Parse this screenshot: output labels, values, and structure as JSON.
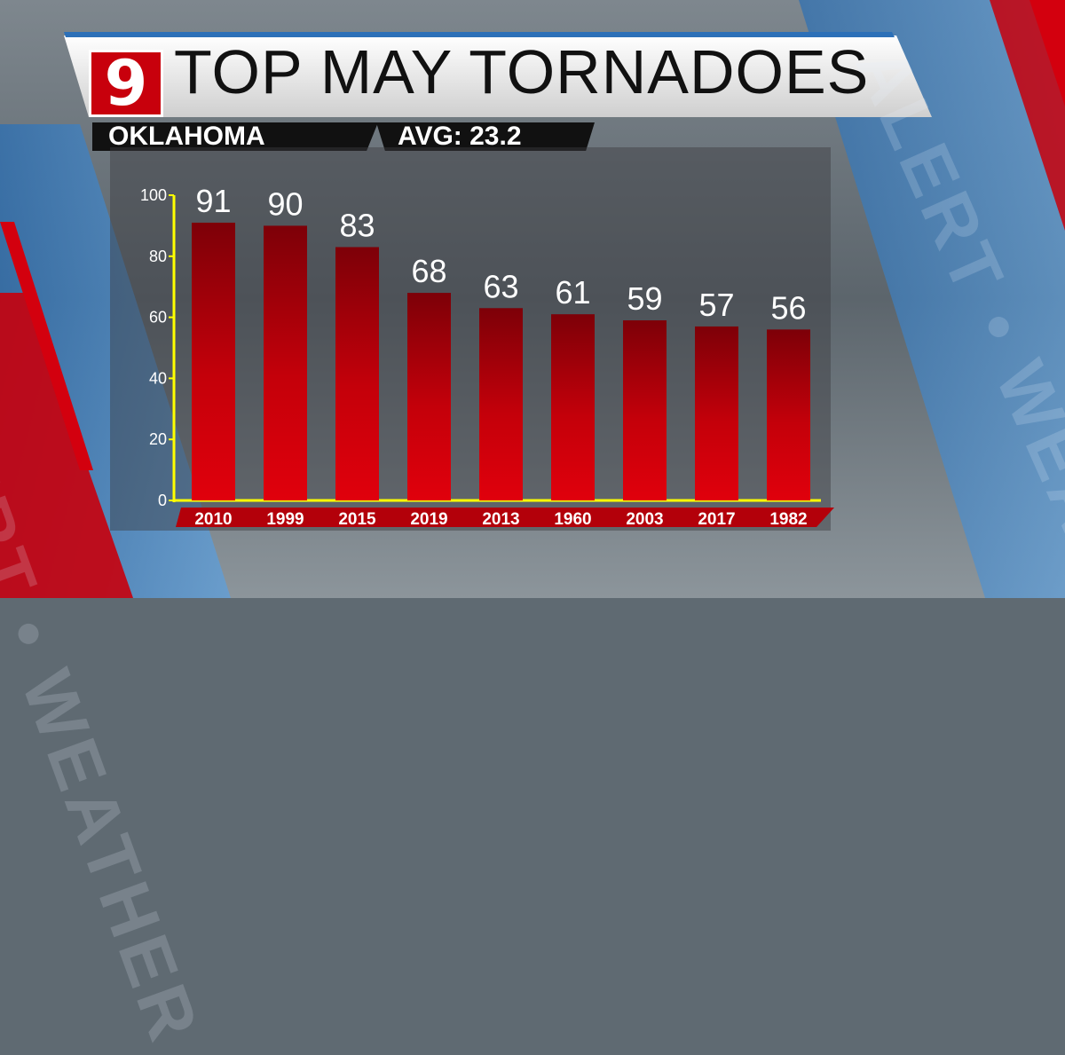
{
  "branding": {
    "logo_text": "9",
    "watermark": "ALERT • WEATHER"
  },
  "header": {
    "subtitle_left": "OKLAHOMA",
    "subtitle_right": "AVG: 23.2"
  },
  "colors": {
    "bar": "#c4000a",
    "bar_dark": "#7a0006",
    "highlight": "#ffff00",
    "axis": "#ffff00",
    "label": "#ffffff"
  },
  "chart_data": {
    "type": "bar",
    "title": "TOP MAY TORNADOES",
    "categories": [
      "2010",
      "1999",
      "2015",
      "2019",
      "2013",
      "1960",
      "2003",
      "2017",
      "1982"
    ],
    "values": [
      91,
      90,
      83,
      68,
      63,
      61,
      59,
      57,
      56
    ],
    "highlight": "2019",
    "ylim": [
      0,
      100
    ],
    "yticks": [
      0,
      20,
      40,
      60,
      80,
      100
    ],
    "grid": false,
    "legend": "none"
  }
}
